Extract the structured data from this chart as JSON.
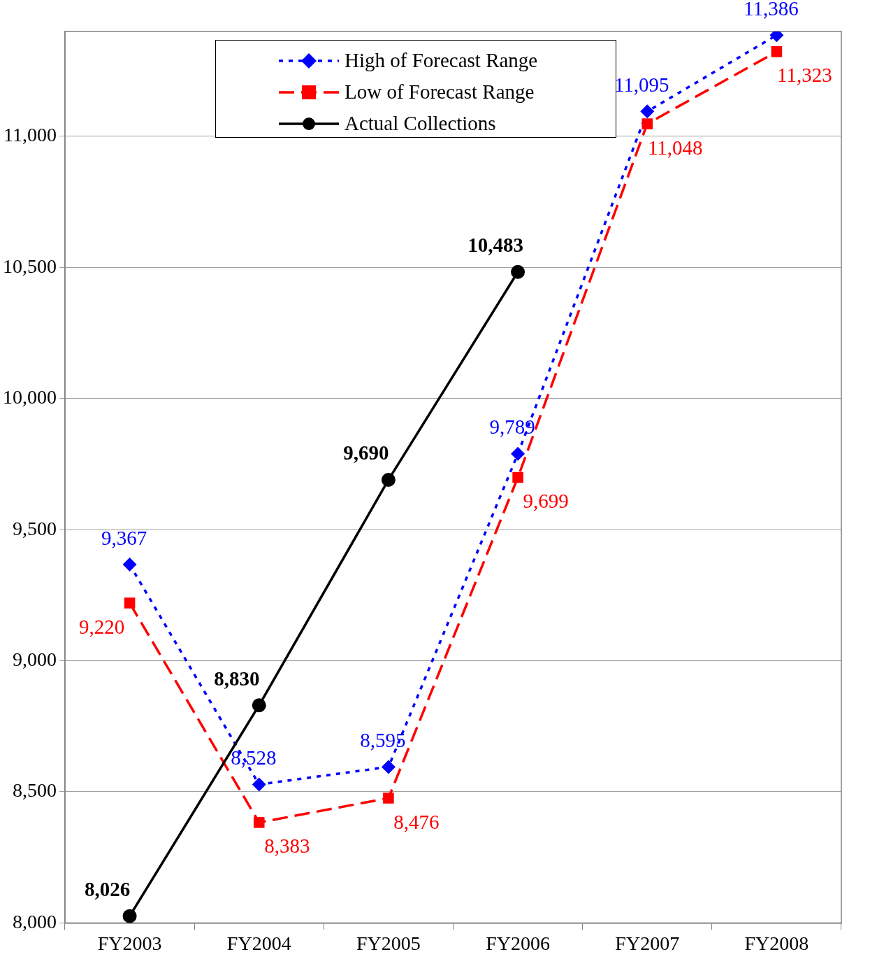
{
  "chart_data": {
    "type": "line",
    "categories": [
      "FY2003",
      "FY2004",
      "FY2005",
      "FY2006",
      "FY2007",
      "FY2008"
    ],
    "series": [
      {
        "name": "High of Forecast Range",
        "color": "#0000ff",
        "marker": "diamond",
        "line_style": "dotted",
        "values": [
          9367,
          8528,
          8595,
          9789,
          11095,
          11386
        ],
        "value_labels": [
          "9,367",
          "8,528",
          "8,595",
          "9,789",
          "11,095",
          "11,386"
        ]
      },
      {
        "name": "Low of Forecast Range",
        "color": "#ff0000",
        "marker": "square",
        "line_style": "dashed",
        "values": [
          9220,
          8383,
          8476,
          9699,
          11048,
          11323
        ],
        "value_labels": [
          "9,220",
          "8,383",
          "8,476",
          "9,699",
          "11,048",
          "11,323"
        ]
      },
      {
        "name": "Actual Collections",
        "color": "#000000",
        "marker": "circle",
        "line_style": "solid",
        "values": [
          8026,
          8830,
          9690,
          10483,
          null,
          null
        ],
        "value_labels": [
          "8,026",
          "8,830",
          "9,690",
          "10,483",
          null,
          null
        ]
      }
    ],
    "ylim": [
      8000,
      11400
    ],
    "yticks": [
      {
        "value": 8000,
        "label": "8,000"
      },
      {
        "value": 8500,
        "label": "8,500"
      },
      {
        "value": 9000,
        "label": "9,000"
      },
      {
        "value": 9500,
        "label": "9,500"
      },
      {
        "value": 10000,
        "label": "10,000"
      },
      {
        "value": 10500,
        "label": "10,500"
      },
      {
        "value": 11000,
        "label": "11,000"
      }
    ],
    "grid": "y",
    "legend": "top"
  }
}
